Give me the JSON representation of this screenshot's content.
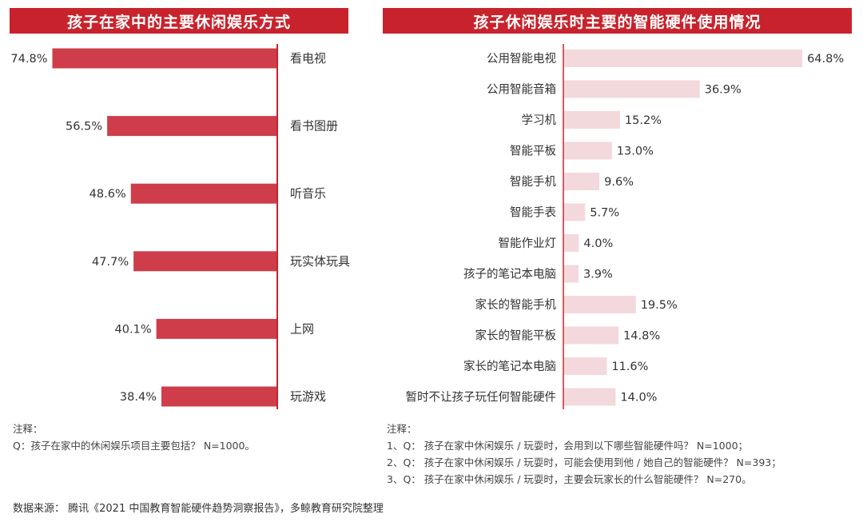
{
  "colors": {
    "header": "#c8232c",
    "bar_left": "#cf3d4a",
    "bar_right": "#f3d9dc",
    "axis": "#c8232c"
  },
  "chart_data": [
    {
      "type": "bar",
      "orientation": "horizontal",
      "title": "孩子在家中的主要休闲娱乐方式",
      "categories": [
        "看电视",
        "看书图册",
        "听音乐",
        "玩实体玩具",
        "上网",
        "玩游戏"
      ],
      "values": [
        74.8,
        56.5,
        48.6,
        47.7,
        40.1,
        38.4
      ],
      "value_labels": [
        "74.8%",
        "56.5%",
        "48.6%",
        "47.7%",
        "40.1%",
        "38.4%"
      ],
      "xlim": [
        0,
        80
      ],
      "grid": false
    },
    {
      "type": "bar",
      "orientation": "horizontal",
      "title": "孩子休闲娱乐时主要的智能硬件使用情况",
      "categories": [
        "公用智能电视",
        "公用智能音箱",
        "学习机",
        "智能平板",
        "智能手机",
        "智能手表",
        "智能作业灯",
        "孩子的笔记本电脑",
        "家长的智能手机",
        "家长的智能平板",
        "家长的笔记本电脑",
        "暂时不让孩子玩任何智能硬件"
      ],
      "values": [
        64.8,
        36.9,
        15.2,
        13.0,
        9.6,
        5.7,
        4.0,
        3.9,
        19.5,
        14.8,
        11.6,
        14.0
      ],
      "value_labels": [
        "64.8%",
        "36.9%",
        "15.2%",
        "13.0%",
        "9.6%",
        "5.7%",
        "4.0%",
        "3.9%",
        "19.5%",
        "14.8%",
        "11.6%",
        "14.0%"
      ],
      "xlim": [
        0,
        70
      ],
      "grid": false
    }
  ],
  "notes_left": {
    "heading": "注释：",
    "lines": [
      "Q：孩子在家中的休闲娱乐项目主要包括？ N=1000。"
    ]
  },
  "notes_right": {
    "heading": "注释：",
    "lines": [
      "1、Q： 孩子在家中休闲娱乐 / 玩耍时，会用到以下哪些智能硬件吗？ N=1000；",
      "2、Q： 孩子在家中休闲娱乐 / 玩耍时，可能会使用到他 / 她自己的智能硬件？ N=393；",
      "3、Q： 孩子在家中休闲娱乐 / 玩耍时，主要会玩家长的什么智能硬件？ N=270。"
    ]
  },
  "source": "数据来源： 腾讯《2021 中国教育智能硬件趋势洞察报告》，多鲸教育研究院整理"
}
